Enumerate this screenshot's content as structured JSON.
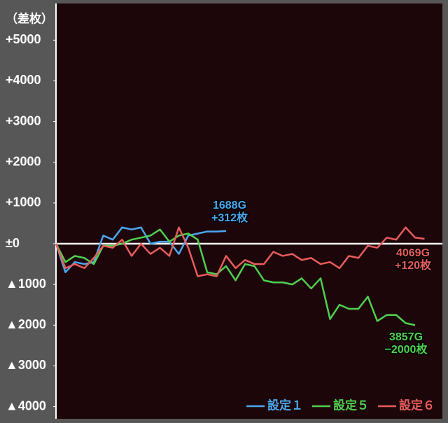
{
  "chart_data": {
    "type": "line",
    "y_label": "（差枚）",
    "categories": [
      null,
      null,
      null,
      null,
      null,
      null,
      null,
      null,
      null,
      null,
      null,
      null,
      null,
      null,
      null,
      null,
      null,
      null,
      null,
      null,
      null,
      null,
      null,
      null,
      null,
      null,
      null,
      null,
      null,
      null,
      null,
      null,
      null,
      null,
      null,
      null,
      null,
      null,
      null,
      null
    ],
    "series": [
      {
        "name": "設定１",
        "color": "#4aa8f0",
        "values": [
          0,
          -700,
          -450,
          -500,
          -450,
          200,
          100,
          400,
          350,
          400,
          0,
          50,
          50,
          -250,
          200,
          250,
          300,
          300,
          312,
          null,
          null,
          null,
          null,
          null,
          null,
          null,
          null,
          null,
          null,
          null,
          null,
          null,
          null,
          null,
          null,
          null,
          null,
          null,
          null,
          null
        ]
      },
      {
        "name": "設定５",
        "color": "#4fd04f",
        "values": [
          0,
          -450,
          -300,
          -350,
          -500,
          -50,
          -50,
          0,
          100,
          150,
          200,
          350,
          50,
          200,
          250,
          100,
          -700,
          -750,
          -550,
          -900,
          -500,
          -550,
          -900,
          -950,
          -950,
          -1000,
          -850,
          -1100,
          -850,
          -1850,
          -1500,
          -1600,
          -1600,
          -1300,
          -1900,
          -1750,
          -1750,
          -1950,
          -2000,
          null
        ]
      },
      {
        "name": "設定６",
        "color": "#e85c5c",
        "values": [
          0,
          -600,
          -500,
          -600,
          -350,
          -50,
          -100,
          100,
          -300,
          0,
          -250,
          -100,
          -300,
          400,
          -100,
          -800,
          -750,
          -800,
          -300,
          -600,
          -400,
          -500,
          -500,
          -200,
          -300,
          -250,
          -400,
          -350,
          -500,
          -450,
          -600,
          -300,
          -350,
          -50,
          -100,
          150,
          100,
          400,
          150,
          120
        ]
      }
    ],
    "annotations": [
      {
        "lines": [
          "1688G",
          "+312枚"
        ],
        "color": "#4aa8f0"
      },
      {
        "lines": [
          "3857G",
          "−2000枚"
        ],
        "color": "#4fd04f"
      },
      {
        "lines": [
          "4069G",
          "+120枚"
        ],
        "color": "#e85c5c"
      }
    ],
    "ylim": [
      -4300,
      5900
    ],
    "yticks": [
      {
        "value": 5000,
        "label": "+5000"
      },
      {
        "value": 4000,
        "label": "+4000"
      },
      {
        "value": 3000,
        "label": "+3000"
      },
      {
        "value": 2000,
        "label": "+2000"
      },
      {
        "value": 1000,
        "label": "+1000"
      },
      {
        "value": 0,
        "label": "±0"
      },
      {
        "value": -1000,
        "label": "▲1000"
      },
      {
        "value": -2000,
        "label": "▲2000"
      },
      {
        "value": -3000,
        "label": "▲3000"
      },
      {
        "value": -4000,
        "label": "▲4000"
      }
    ],
    "zero_line": true
  }
}
